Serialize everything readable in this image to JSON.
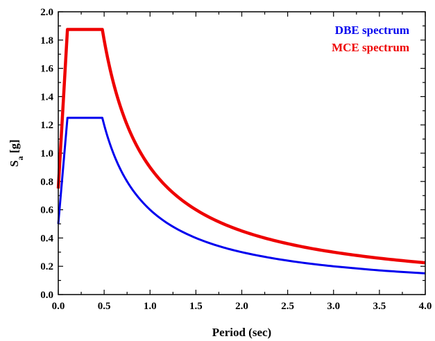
{
  "chart_data": {
    "type": "line",
    "xlabel": "Period (sec)",
    "ylabel": {
      "main": "S",
      "sub": "a",
      "suffix": " [g]"
    },
    "xlim": [
      0,
      4.0
    ],
    "ylim": [
      0,
      2.0
    ],
    "x_ticks": [
      "0.0",
      "0.5",
      "1.0",
      "1.5",
      "2.0",
      "2.5",
      "3.0",
      "3.5",
      "4.0"
    ],
    "y_ticks": [
      "0.0",
      "0.2",
      "0.4",
      "0.6",
      "0.8",
      "1.0",
      "1.2",
      "1.4",
      "1.6",
      "1.8",
      "2.0"
    ],
    "grid": false,
    "legend_position": "top-right",
    "series": [
      {
        "name": "DBE spectrum",
        "color": "#0000ee",
        "x": [
          0,
          0.1,
          0.48,
          0.5,
          0.6,
          0.7,
          0.8,
          0.9,
          1.0,
          1.2,
          1.4,
          1.6,
          1.8,
          2.0,
          2.25,
          2.5,
          2.75,
          3.0,
          3.25,
          3.5,
          3.75,
          4.0
        ],
        "y": [
          0.5,
          1.25,
          1.25,
          1.2,
          1.0,
          0.857,
          0.75,
          0.667,
          0.6,
          0.5,
          0.429,
          0.375,
          0.333,
          0.3,
          0.267,
          0.24,
          0.218,
          0.2,
          0.185,
          0.171,
          0.16,
          0.15
        ]
      },
      {
        "name": "MCE spectrum",
        "color": "#ee0000",
        "x": [
          0,
          0.1,
          0.48,
          0.5,
          0.6,
          0.7,
          0.8,
          0.9,
          1.0,
          1.2,
          1.4,
          1.6,
          1.8,
          2.0,
          2.25,
          2.5,
          2.75,
          3.0,
          3.25,
          3.5,
          3.75,
          4.0
        ],
        "y": [
          0.75,
          1.875,
          1.875,
          1.8,
          1.5,
          1.286,
          1.125,
          1.0,
          0.9,
          0.75,
          0.643,
          0.5625,
          0.5,
          0.45,
          0.4,
          0.36,
          0.327,
          0.3,
          0.277,
          0.257,
          0.24,
          0.225
        ]
      }
    ]
  }
}
